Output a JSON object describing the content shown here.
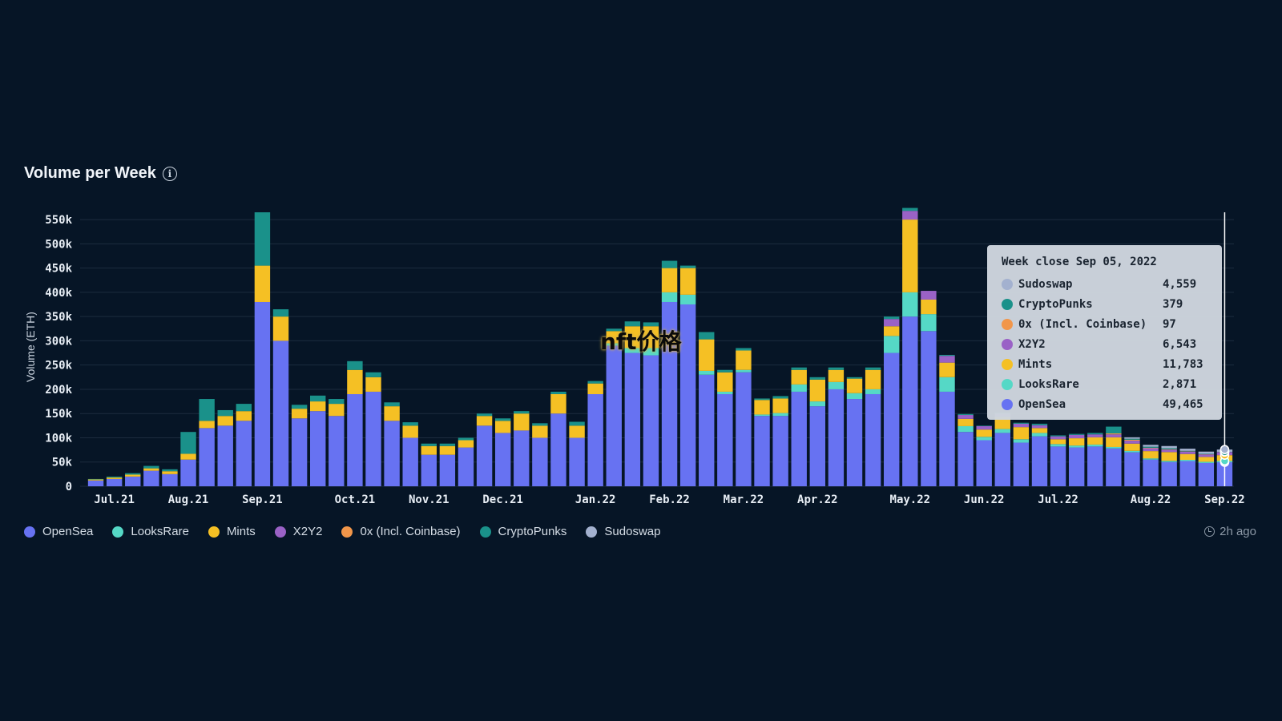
{
  "page": {
    "title": "Volume per Week",
    "updated": "2h ago",
    "watermark": "nft价格"
  },
  "colors": {
    "OpenSea": "#6772f2",
    "LooksRare": "#55d8c6",
    "Mints": "#f5c024",
    "X2Y2": "#9a62c6",
    "0x (Incl. Coinbase)": "#f1964a",
    "CryptoPunks": "#1a918a",
    "Sudoswap": "#a3b1cf"
  },
  "tooltip": {
    "title": "Week close Sep 05, 2022",
    "rows": [
      {
        "name": "Sudoswap",
        "value": "4,559",
        "color": "#a3b1cf"
      },
      {
        "name": "CryptoPunks",
        "value": "379",
        "color": "#1a918a"
      },
      {
        "name": "0x (Incl. Coinbase)",
        "value": "97",
        "color": "#f1964a"
      },
      {
        "name": "X2Y2",
        "value": "6,543",
        "color": "#9a62c6"
      },
      {
        "name": "Mints",
        "value": "11,783",
        "color": "#f5c024"
      },
      {
        "name": "LooksRare",
        "value": "2,871",
        "color": "#55d8c6"
      },
      {
        "name": "OpenSea",
        "value": "49,465",
        "color": "#6772f2"
      }
    ]
  },
  "chart_data": {
    "type": "bar",
    "stacked": true,
    "title": "Volume per Week",
    "ylabel": "Volume (ETH)",
    "ylim": [
      0,
      565000
    ],
    "y_ticks": [
      "0",
      "50k",
      "100k",
      "150k",
      "200k",
      "250k",
      "300k",
      "350k",
      "400k",
      "450k",
      "500k",
      "550k"
    ],
    "y_tick_values": [
      0,
      50000,
      100000,
      150000,
      200000,
      250000,
      300000,
      350000,
      400000,
      450000,
      500000,
      550000
    ],
    "x_ticks": [
      {
        "label": "Jul.21",
        "at_week": 1
      },
      {
        "label": "Aug.21",
        "at_week": 5
      },
      {
        "label": "Sep.21",
        "at_week": 9
      },
      {
        "label": "Oct.21",
        "at_week": 14
      },
      {
        "label": "Nov.21",
        "at_week": 18
      },
      {
        "label": "Dec.21",
        "at_week": 22
      },
      {
        "label": "Jan.22",
        "at_week": 27
      },
      {
        "label": "Feb.22",
        "at_week": 31
      },
      {
        "label": "Mar.22",
        "at_week": 35
      },
      {
        "label": "Apr.22",
        "at_week": 39
      },
      {
        "label": "May.22",
        "at_week": 44
      },
      {
        "label": "Jun.22",
        "at_week": 48
      },
      {
        "label": "Jul.22",
        "at_week": 52
      },
      {
        "label": "Aug.22",
        "at_week": 57
      },
      {
        "label": "Sep.22",
        "at_week": 61
      }
    ],
    "grid": true,
    "legend_position": "bottom-left",
    "series": [
      {
        "name": "OpenSea",
        "values": [
          12000,
          15000,
          20000,
          32000,
          25000,
          55000,
          120000,
          125000,
          135000,
          380000,
          300000,
          140000,
          155000,
          145000,
          190000,
          195000,
          135000,
          100000,
          65000,
          65000,
          80000,
          125000,
          110000,
          115000,
          100000,
          150000,
          100000,
          190000,
          290000,
          275000,
          270000,
          380000,
          375000,
          230000,
          190000,
          235000,
          145000,
          145000,
          195000,
          165000,
          200000,
          180000,
          190000,
          275000,
          350000,
          320000,
          195000,
          112000,
          95000,
          110000,
          90000,
          103000,
          82000,
          80000,
          82000,
          78000,
          70000,
          55000,
          50000,
          52000,
          48000,
          49465
        ]
      },
      {
        "name": "LooksRare",
        "values": [
          0,
          0,
          0,
          0,
          0,
          0,
          0,
          0,
          0,
          0,
          0,
          0,
          0,
          0,
          0,
          0,
          0,
          0,
          0,
          0,
          0,
          0,
          0,
          0,
          0,
          0,
          0,
          0,
          5000,
          10000,
          15000,
          20000,
          20000,
          8000,
          5000,
          5000,
          3000,
          6000,
          15000,
          10000,
          15000,
          12000,
          10000,
          35000,
          50000,
          35000,
          30000,
          12000,
          7000,
          8000,
          7000,
          7000,
          5000,
          4000,
          4000,
          3000,
          3000,
          2500,
          2500,
          2500,
          2500,
          2871
        ]
      },
      {
        "name": "Mints",
        "values": [
          2000,
          3000,
          4000,
          5000,
          6000,
          12000,
          15000,
          20000,
          20000,
          75000,
          50000,
          20000,
          20000,
          25000,
          50000,
          30000,
          30000,
          25000,
          18000,
          18000,
          15000,
          20000,
          25000,
          35000,
          25000,
          40000,
          25000,
          22000,
          25000,
          45000,
          45000,
          50000,
          55000,
          65000,
          40000,
          40000,
          30000,
          30000,
          30000,
          45000,
          25000,
          30000,
          40000,
          20000,
          150000,
          30000,
          30000,
          15000,
          15000,
          25000,
          25000,
          10000,
          10000,
          15000,
          15000,
          20000,
          15000,
          15000,
          18000,
          12000,
          10000,
          11783
        ]
      },
      {
        "name": "X2Y2",
        "values": [
          0,
          0,
          0,
          0,
          0,
          0,
          0,
          0,
          0,
          0,
          0,
          0,
          0,
          0,
          0,
          0,
          0,
          0,
          0,
          0,
          0,
          0,
          0,
          0,
          0,
          0,
          0,
          0,
          0,
          0,
          0,
          0,
          0,
          0,
          0,
          0,
          0,
          0,
          0,
          0,
          0,
          0,
          0,
          15000,
          18000,
          18000,
          14000,
          8000,
          7000,
          7000,
          7000,
          6000,
          6000,
          7000,
          6000,
          6000,
          6000,
          6000,
          5000,
          5000,
          5000,
          6543
        ]
      },
      {
        "name": "0x (Incl. Coinbase)",
        "values": [
          0,
          0,
          0,
          0,
          0,
          0,
          0,
          0,
          0,
          0,
          0,
          0,
          0,
          0,
          0,
          0,
          0,
          0,
          0,
          0,
          0,
          0,
          0,
          0,
          0,
          0,
          0,
          0,
          0,
          0,
          0,
          0,
          0,
          0,
          0,
          0,
          0,
          0,
          0,
          0,
          0,
          0,
          0,
          0,
          0,
          0,
          0,
          0,
          0,
          0,
          0,
          0,
          0,
          0,
          0,
          2000,
          2000,
          1000,
          1000,
          500,
          500,
          97
        ]
      },
      {
        "name": "CryptoPunks",
        "values": [
          1000,
          2000,
          3000,
          5000,
          4000,
          45000,
          45000,
          12000,
          15000,
          110000,
          15000,
          8000,
          12000,
          10000,
          18000,
          10000,
          8000,
          7000,
          5000,
          5000,
          5000,
          5000,
          5000,
          5000,
          5000,
          5000,
          8000,
          5000,
          5000,
          10000,
          8000,
          15000,
          5000,
          15000,
          5000,
          5000,
          3000,
          5000,
          5000,
          5000,
          5000,
          3000,
          5000,
          5000,
          6000,
          0,
          2000,
          2000,
          1000,
          2000,
          2000,
          3000,
          2000,
          2000,
          3000,
          14000,
          2000,
          2000,
          2000,
          1000,
          1000,
          379
        ]
      },
      {
        "name": "Sudoswap",
        "values": [
          0,
          0,
          0,
          0,
          0,
          0,
          0,
          0,
          0,
          0,
          0,
          0,
          0,
          0,
          0,
          0,
          0,
          0,
          0,
          0,
          0,
          0,
          0,
          0,
          0,
          0,
          0,
          0,
          0,
          0,
          0,
          0,
          0,
          0,
          0,
          0,
          0,
          0,
          0,
          0,
          0,
          0,
          0,
          0,
          0,
          0,
          0,
          0,
          0,
          0,
          0,
          0,
          0,
          0,
          0,
          0,
          3000,
          4000,
          4500,
          4500,
          4500,
          4559
        ]
      }
    ]
  }
}
